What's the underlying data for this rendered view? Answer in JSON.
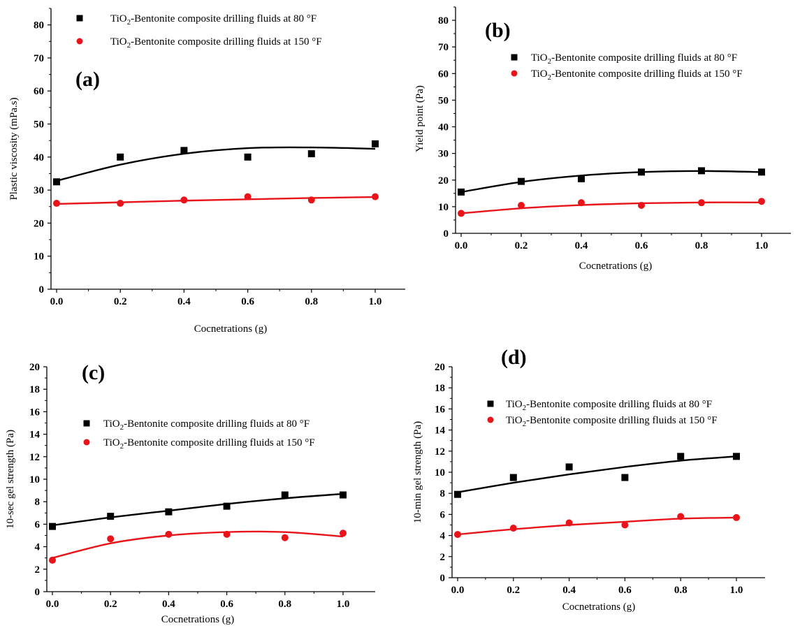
{
  "chart_data": [
    {
      "type": "scatter",
      "panel_label": "(a)",
      "xlabel": "Cocnetrations (g)",
      "ylabel": "Plastic viscosity (mPa.s)",
      "xlim": [
        0,
        1.0
      ],
      "ylim": [
        0,
        85
      ],
      "x_ticks": [
        "0.0",
        "0.2",
        "0.4",
        "0.6",
        "0.8",
        "1.0"
      ],
      "y_ticks": [
        "0",
        "10",
        "20",
        "30",
        "40",
        "50",
        "60",
        "70",
        "80"
      ],
      "x": [
        0.0,
        0.2,
        0.4,
        0.6,
        0.8,
        1.0
      ],
      "series": [
        {
          "name": "TiO2-Bentonite composite drilling fluids at 80 °F",
          "marker": "square",
          "color": "#000000",
          "values": [
            32.5,
            40,
            42,
            40,
            41,
            44
          ],
          "fit": [
            32.8,
            37.7,
            41.0,
            42.7,
            42.9,
            42.5
          ]
        },
        {
          "name": "TiO2-Bentonite composite drilling fluids at 150 °F",
          "marker": "circle",
          "color": "#e8141a",
          "values": [
            26,
            26,
            27,
            28,
            27,
            28
          ],
          "fit": [
            25.8,
            26.3,
            26.8,
            27.2,
            27.6,
            27.9
          ]
        }
      ]
    },
    {
      "type": "scatter",
      "panel_label": "(b)",
      "xlabel": "Cocnetrations (g)",
      "ylabel": "Yield point (Pa)",
      "xlim": [
        0,
        1.0
      ],
      "ylim": [
        0,
        85
      ],
      "x_ticks": [
        "0.0",
        "0.2",
        "0.4",
        "0.6",
        "0.8",
        "1.0"
      ],
      "y_ticks": [
        "0",
        "10",
        "20",
        "30",
        "40",
        "50",
        "60",
        "70",
        "80"
      ],
      "x": [
        0.0,
        0.2,
        0.4,
        0.6,
        0.8,
        1.0
      ],
      "series": [
        {
          "name": "TiO2-Bentonite composite drilling fluids at 80 °F",
          "marker": "square",
          "color": "#000000",
          "values": [
            15.5,
            19.5,
            20.5,
            23,
            23.5,
            23
          ],
          "fit": [
            15.5,
            19.3,
            21.7,
            23.0,
            23.4,
            23.0
          ]
        },
        {
          "name": "TiO2-Bentonite composite drilling fluids at 150 °F",
          "marker": "circle",
          "color": "#e8141a",
          "values": [
            7.5,
            10.5,
            11.5,
            10.5,
            11.5,
            12
          ],
          "fit": [
            7.5,
            9.4,
            10.6,
            11.3,
            11.6,
            11.6
          ]
        }
      ]
    },
    {
      "type": "scatter",
      "panel_label": "(c)",
      "xlabel": "Cocnetrations (g)",
      "ylabel": "10-sec gel strength (Pa)",
      "xlim": [
        0,
        1.0
      ],
      "ylim": [
        0,
        20
      ],
      "x_ticks": [
        "0.0",
        "0.2",
        "0.4",
        "0.6",
        "0.8",
        "1.0"
      ],
      "y_ticks": [
        "0",
        "2",
        "4",
        "6",
        "8",
        "10",
        "12",
        "14",
        "16",
        "18",
        "20"
      ],
      "x": [
        0.0,
        0.2,
        0.4,
        0.6,
        0.8,
        1.0
      ],
      "series": [
        {
          "name": "TiO2-Bentonite composite drilling fluids at 80 °F",
          "marker": "square",
          "color": "#000000",
          "values": [
            5.8,
            6.7,
            7.1,
            7.6,
            8.6,
            8.6
          ],
          "fit": [
            5.9,
            6.6,
            7.2,
            7.8,
            8.3,
            8.7
          ]
        },
        {
          "name": "TiO2-Bentonite composite drilling fluids at 150 °F",
          "marker": "circle",
          "color": "#e8141a",
          "values": [
            2.8,
            4.7,
            5.1,
            5.1,
            4.8,
            5.2
          ],
          "fit": [
            3.0,
            4.3,
            5.0,
            5.3,
            5.3,
            4.9
          ]
        }
      ]
    },
    {
      "type": "scatter",
      "panel_label": "(d)",
      "xlabel": "Cocnetrations (g)",
      "ylabel": "10-min gel strength (Pa)",
      "xlim": [
        0,
        1.0
      ],
      "ylim": [
        0,
        20
      ],
      "x_ticks": [
        "0.0",
        "0.2",
        "0.4",
        "0.6",
        "0.8",
        "1.0"
      ],
      "y_ticks": [
        "0",
        "2",
        "4",
        "6",
        "8",
        "10",
        "12",
        "14",
        "16",
        "18",
        "20"
      ],
      "x": [
        0.0,
        0.2,
        0.4,
        0.6,
        0.8,
        1.0
      ],
      "series": [
        {
          "name": "TiO2-Bentonite composite drilling fluids at 80 °F",
          "marker": "square",
          "color": "#000000",
          "values": [
            7.9,
            9.5,
            10.5,
            9.5,
            11.5,
            11.5
          ],
          "fit": [
            8.1,
            9.0,
            9.8,
            10.5,
            11.1,
            11.5
          ]
        },
        {
          "name": "TiO2-Bentonite composite drilling fluids at 150 °F",
          "marker": "circle",
          "color": "#e8141a",
          "values": [
            4.1,
            4.7,
            5.2,
            5.0,
            5.8,
            5.7
          ],
          "fit": [
            4.1,
            4.6,
            5.0,
            5.3,
            5.6,
            5.7
          ]
        }
      ]
    }
  ],
  "legend": {
    "line1_prefix": "TiO",
    "line1_sub": "2",
    "line1_suffix": "-Bentonite composite drilling fluids at 80 °F",
    "line2_prefix": "TiO",
    "line2_sub": "2",
    "line2_suffix": "-Bentonite composite drilling fluids at  150 °F"
  }
}
